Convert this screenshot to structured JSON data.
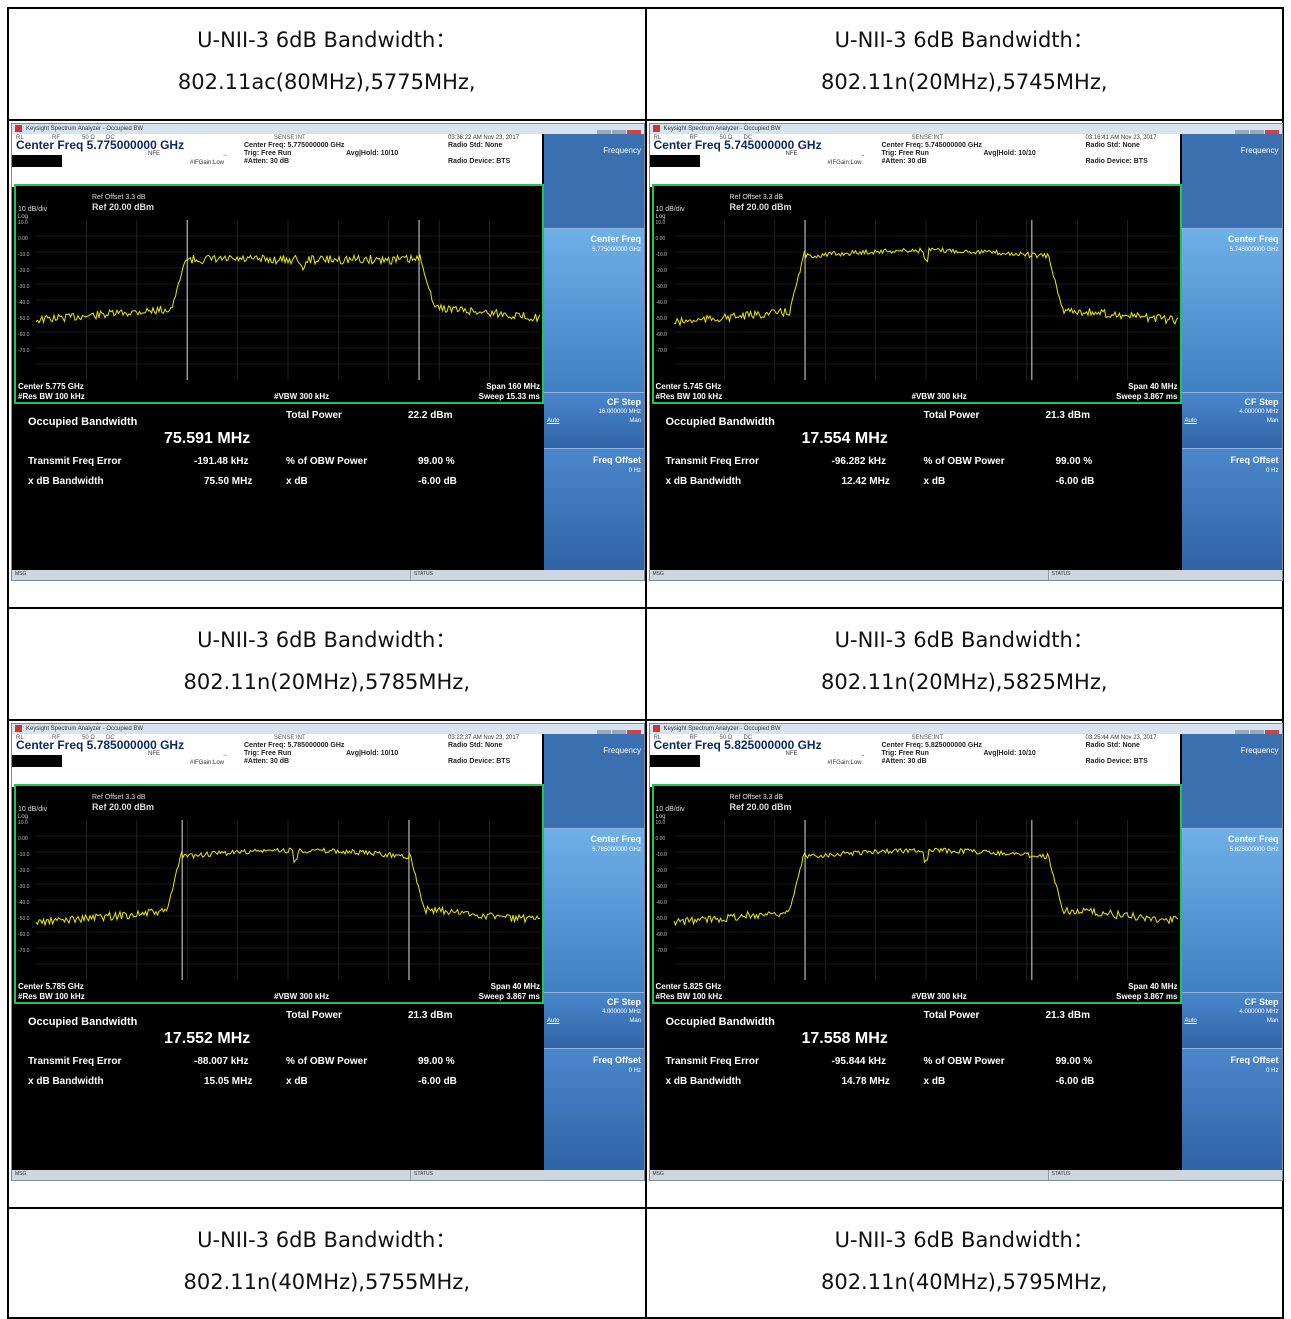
{
  "rows": [
    {
      "cells": [
        {
          "caption_line1": "U-NII-3 6dB Bandwidth：",
          "caption_line2": "802.11ac(80MHz),5775MHz,"
        },
        {
          "caption_line1": "U-NII-3 6dB Bandwidth：",
          "caption_line2": "802.11n(20MHz),5745MHz,"
        }
      ]
    },
    {
      "cells": [
        {
          "caption_line1": "U-NII-3 6dB Bandwidth：",
          "caption_line2": "802.11n(20MHz),5785MHz,"
        },
        {
          "caption_line1": "U-NII-3 6dB Bandwidth：",
          "caption_line2": "802.11n(20MHz),5825MHz,"
        }
      ]
    },
    {
      "cells": [
        {
          "caption_line1": "U-NII-3 6dB Bandwidth：",
          "caption_line2": "802.11n(40MHz),5755MHz,"
        },
        {
          "caption_line1": "U-NII-3 6dB Bandwidth：",
          "caption_line2": "802.11n(40MHz),5795MHz,"
        }
      ]
    }
  ],
  "common": {
    "window_title": "Keysight Spectrum Analyzer - Occupied BW",
    "menu_rl": "RL",
    "menu_rf": "RF",
    "menu_ohm": "50 Ω",
    "menu_dc": "DC",
    "menu_sense": "SENSE:INT",
    "nfe": "NFE",
    "ifgain": "#IFGain:Low",
    "trig": "Trig: Free Run",
    "atten": "#Atten: 30 dB",
    "avg": "Avg|Hold: 10/10",
    "radio_std": "Radio Std: None",
    "radio_dev": "Radio Device: BTS",
    "ref_offset": "Ref Offset 3.3 dB",
    "ref_level": "Ref 20.00 dBm",
    "db_div": "10 dB/div",
    "log": "Log",
    "res_bw": "#Res BW  100 kHz",
    "vbw": "#VBW  300 kHz",
    "obw_label": "Occupied Bandwidth",
    "total_power_label": "Total Power",
    "tfe_label": "Transmit Freq Error",
    "obw_power_label": "% of OBW Power",
    "obw_power_value": "99.00 %",
    "xdb_bw_label": "x dB Bandwidth",
    "xdb_label": "x dB",
    "xdb_value": "-6.00 dB",
    "sk_frequency": "Frequency",
    "sk_center_freq": "Center Freq",
    "sk_cf_step": "CF Step",
    "sk_auto": "Auto",
    "sk_man": "Man",
    "sk_freq_offset": "Freq Offset",
    "sk_freq_offset_value": "0 Hz",
    "msg": "MSG",
    "status": "STATUS",
    "y_labels": [
      "10.0",
      "0.00",
      "-10.0",
      "-20.0",
      "-30.0",
      "-40.0",
      "-50.0",
      "-60.0",
      "-70.0"
    ]
  },
  "screens": [
    {
      "id": "s5775",
      "timestamp": "03:36:22 AM Nov 23, 2017",
      "center_freq_title": "Center Freq 5.775000000 GHz",
      "center_freq_info": "Center Freq: 5.775000000 GHz",
      "center_label": "Center  5.775 GHz",
      "span": "Span 160 MHz",
      "sweep": "Sweep  15.33 ms",
      "obw": "75.591 MHz",
      "total_power": "22.2 dBm",
      "tfe": "-191.48 kHz",
      "xdb_bw": "75.50 MHz",
      "sk_center_value": "5.775000000 GHz",
      "sk_cf_step_value": "16.000000 MHz",
      "band": {
        "f_lo": 0.3,
        "f_hi": 0.76,
        "m_lo": 0.3,
        "m_hi": 0.76,
        "top": 42,
        "bottom": 78,
        "style": "flat"
      }
    },
    {
      "id": "s5745",
      "timestamp": "03:16:41 AM Nov 23, 2017",
      "center_freq_title": "Center Freq 5.745000000 GHz",
      "center_freq_info": "Center Freq: 5.745000000 GHz",
      "center_label": "Center  5.745 GHz",
      "span": "Span 40 MHz",
      "sweep": "Sweep  3.867 ms",
      "obw": "17.554 MHz",
      "total_power": "21.3 dBm",
      "tfe": "-96.282 kHz",
      "xdb_bw": "12.42 MHz",
      "sk_center_value": "5.745000000 GHz",
      "sk_cf_step_value": "4.000000 MHz",
      "band": {
        "f_lo": 0.26,
        "f_hi": 0.74,
        "m_lo": 0.26,
        "m_hi": 0.71,
        "top": 38,
        "bottom": 80,
        "style": "dome"
      }
    },
    {
      "id": "s5785",
      "timestamp": "03:22:37 AM Nov 23, 2017",
      "center_freq_title": "Center Freq 5.785000000 GHz",
      "center_freq_info": "Center Freq: 5.785000000 GHz",
      "center_label": "Center  5.785 GHz",
      "span": "Span 40 MHz",
      "sweep": "Sweep  3.867 ms",
      "obw": "17.552 MHz",
      "total_power": "21.3 dBm",
      "tfe": "-88.007 kHz",
      "xdb_bw": "15.05 MHz",
      "sk_center_value": "5.785000000 GHz",
      "sk_cf_step_value": "4.000000 MHz",
      "band": {
        "f_lo": 0.29,
        "f_hi": 0.74,
        "m_lo": 0.29,
        "m_hi": 0.74,
        "top": 38,
        "bottom": 80,
        "style": "dome"
      }
    },
    {
      "id": "s5825",
      "timestamp": "03:25:44 AM Nov 23, 2017",
      "center_freq_title": "Center Freq 5.825000000 GHz",
      "center_freq_info": "Center Freq: 5.825000000 GHz",
      "center_label": "Center  5.825 GHz",
      "span": "Span 40 MHz",
      "sweep": "Sweep  3.867 ms",
      "obw": "17.558 MHz",
      "total_power": "21.3 dBm",
      "tfe": "-95.844 kHz",
      "xdb_bw": "14.78 MHz",
      "sk_center_value": "5.825000000 GHz",
      "sk_cf_step_value": "4.000000 MHz",
      "band": {
        "f_lo": 0.26,
        "f_hi": 0.74,
        "m_lo": 0.26,
        "m_hi": 0.71,
        "top": 38,
        "bottom": 80,
        "style": "dome"
      }
    }
  ],
  "colors": {
    "trace": "#e8e800",
    "graph_border": "#22c455",
    "marker_line": "#dddddd"
  }
}
